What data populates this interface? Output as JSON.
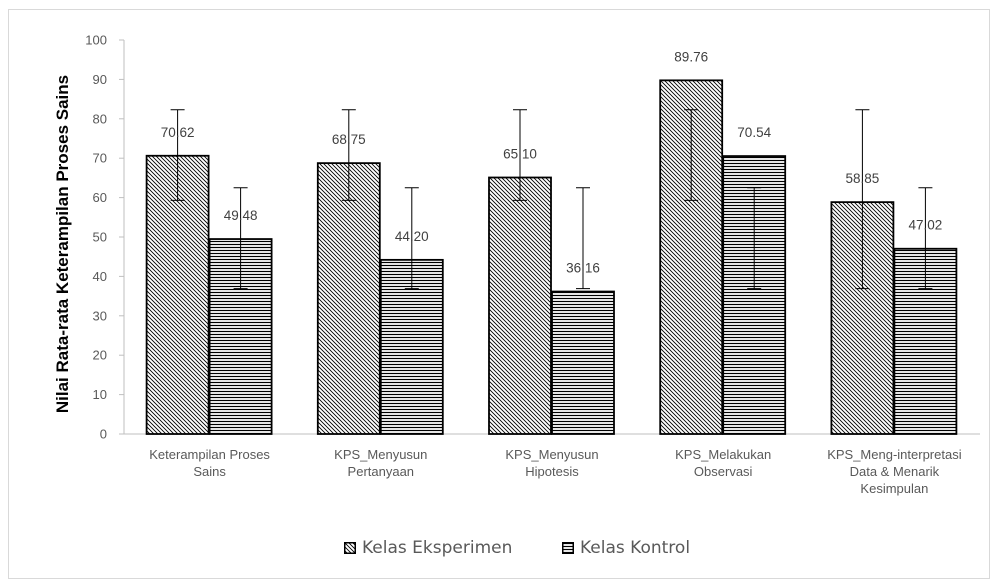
{
  "chart_data": {
    "type": "bar",
    "ylabel": "Nilai Rata-rata Keterampilan Proses Sains",
    "xlabel": "",
    "ylim": [
      0,
      100
    ],
    "yticks": [
      0,
      10,
      20,
      30,
      40,
      50,
      60,
      70,
      80,
      90,
      100
    ],
    "categories": [
      [
        "Keterampilan Proses",
        "Sains"
      ],
      [
        "KPS_Menyusun",
        "Pertanyaan"
      ],
      [
        "KPS_Menyusun",
        "Hipotesis"
      ],
      [
        "KPS_Melakukan",
        "Observasi"
      ],
      [
        "KPS_Meng-interpretasi",
        "Data & Menarik",
        "Kesimpulan"
      ]
    ],
    "series": [
      {
        "name": "Kelas Eksperimen",
        "pattern": "diagonal",
        "values": [
          70.62,
          68.75,
          65.1,
          89.76,
          58.85
        ],
        "labels": [
          "70.62",
          "68.75",
          "65.10",
          "89.76",
          "58.85"
        ],
        "error_bars": [
          [
            59.3,
            82.3
          ],
          [
            59.3,
            82.3
          ],
          [
            59.3,
            82.3
          ],
          [
            59.3,
            82.3
          ],
          [
            36.9,
            82.3
          ]
        ]
      },
      {
        "name": "Kelas Kontrol",
        "pattern": "horizontal",
        "values": [
          49.48,
          44.2,
          36.16,
          70.54,
          47.02
        ],
        "labels": [
          "49.48",
          "44.20",
          "36.16",
          "70.54",
          "47.02"
        ],
        "error_bars": [
          [
            36.9,
            62.5
          ],
          [
            36.9,
            62.5
          ],
          [
            36.9,
            62.5
          ],
          [
            36.9,
            62.5
          ],
          [
            36.9,
            62.5
          ]
        ]
      }
    ],
    "grid": false,
    "legend_position": "bottom"
  }
}
